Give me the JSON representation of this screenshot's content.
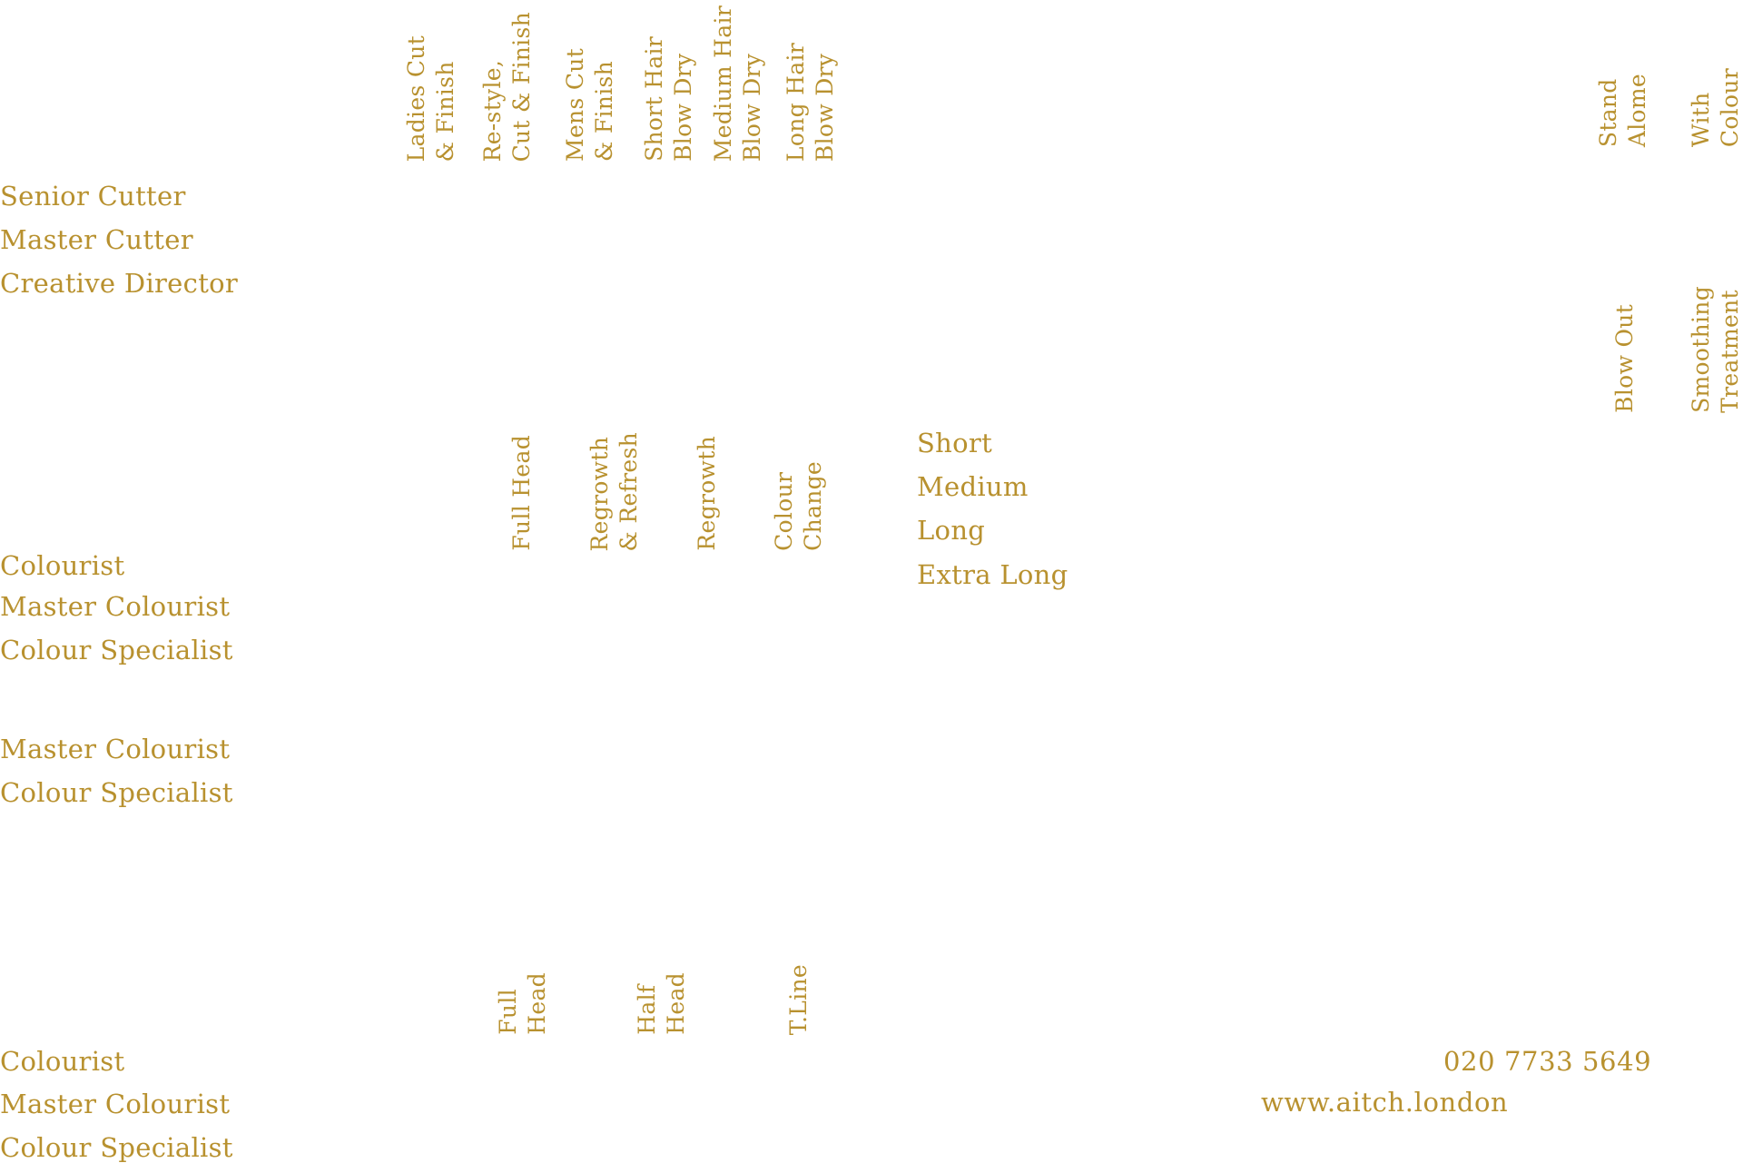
{
  "palette": {
    "text": "#b8912f",
    "background": "#ffffff"
  },
  "cutting": {
    "headers": [
      "Ladies Cut\n& Finish",
      "Re-style,\nCut & Finish",
      "Mens Cut\n& Finish",
      "Short Hair\nBlow Dry",
      "Medium Hair\nBlow Dry",
      "Long Hair\nBlow Dry"
    ],
    "rows": [
      "Senior Cutter",
      "Master Cutter",
      "Creative Director"
    ]
  },
  "treatments": {
    "headers_top": [
      "Stand\nAlome",
      "With\nColour"
    ],
    "headers_bottom": [
      "Blow Out",
      "Smoothing\nTreatment"
    ],
    "lengths": [
      "Short",
      "Medium",
      "Long",
      "Extra Long"
    ]
  },
  "colour": {
    "headers": [
      "Full Head",
      "Regrowth\n& Refresh",
      "Regrowth",
      "Colour\nChange"
    ],
    "rows": [
      "Colourist",
      "Master Colourist",
      "Colour Specialist"
    ]
  },
  "toners": {
    "rows": [
      "Master Colourist",
      "Colour Specialist"
    ]
  },
  "highlights": {
    "headers": [
      "Full\nHead",
      "Half\nHead",
      "T.Line"
    ],
    "rows": [
      "Colourist",
      "Master Colourist",
      "Colour Specialist"
    ]
  },
  "contact": {
    "phone": "020 7733 5649",
    "website": "www.aitch.london"
  }
}
